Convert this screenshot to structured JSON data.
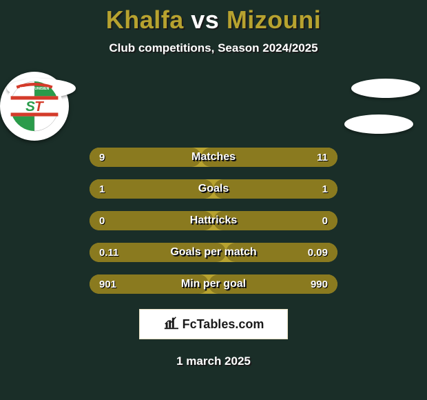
{
  "header": {
    "player_left": "Khalfa",
    "vs": "vs",
    "player_right": "Mizouni",
    "player_left_color": "#b7a22f",
    "vs_color": "#ffffff",
    "player_right_color": "#b7a22f",
    "subtitle": "Club competitions, Season 2024/2025"
  },
  "colors": {
    "page_bg": "#1a2e28",
    "bar_bg": "#b7a22f",
    "bar_left_fill": "#8a7a1f",
    "bar_right_fill": "#8a7a1f",
    "text": "#ffffff"
  },
  "bars": [
    {
      "label": "Matches",
      "left": "9",
      "right": "11",
      "left_pct": 45,
      "right_pct": 55
    },
    {
      "label": "Goals",
      "left": "1",
      "right": "1",
      "left_pct": 50,
      "right_pct": 50
    },
    {
      "label": "Hattricks",
      "left": "0",
      "right": "0",
      "left_pct": 50,
      "right_pct": 50
    },
    {
      "label": "Goals per match",
      "left": "0.11",
      "right": "0.09",
      "left_pct": 55,
      "right_pct": 45
    },
    {
      "label": "Min per goal",
      "left": "901",
      "right": "990",
      "left_pct": 48,
      "right_pct": 52
    }
  ],
  "branding": {
    "text": "FcTables.com"
  },
  "footer": {
    "date": "1 march 2025"
  },
  "club_logo": {
    "green": "#2a9b4a",
    "white": "#ffffff",
    "red": "#d43b2a",
    "letter_s_color": "#2a9b4a",
    "letter_t_color": "#d43b2a"
  }
}
